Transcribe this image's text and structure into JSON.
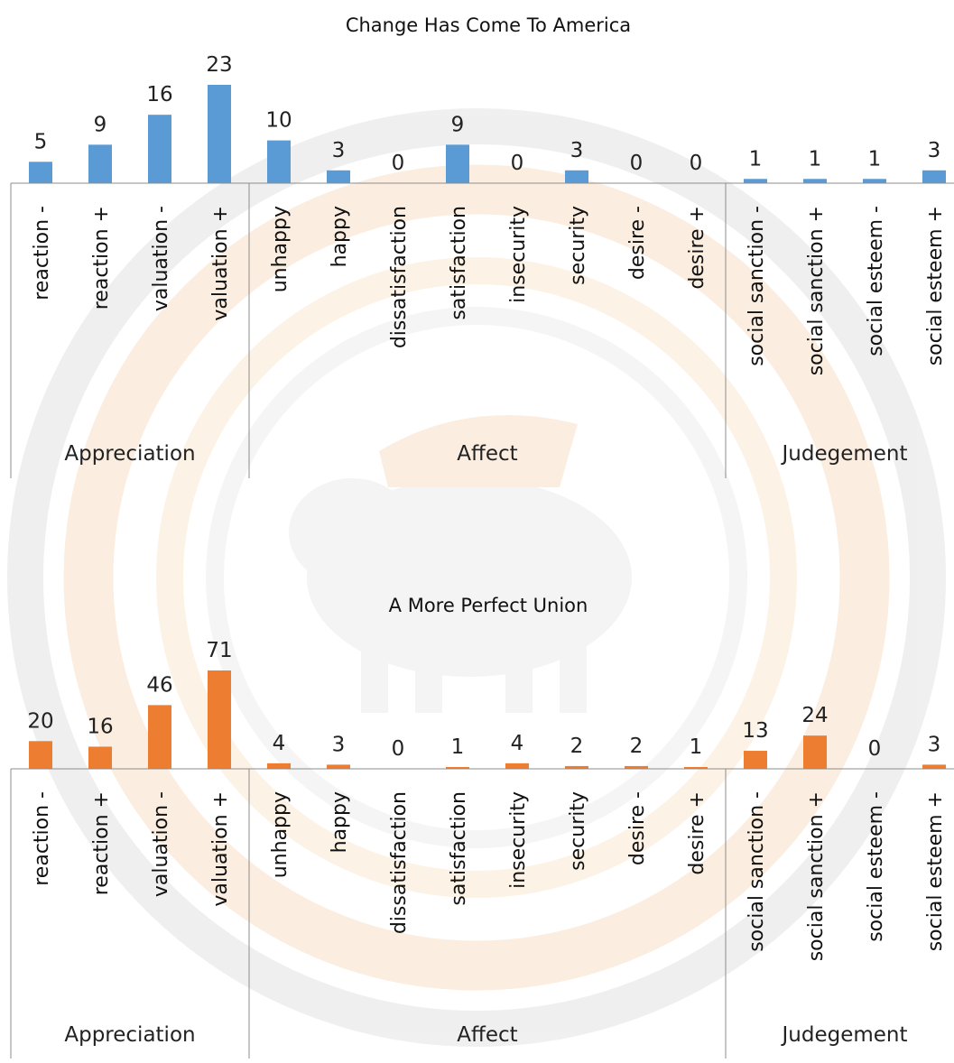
{
  "colors": {
    "chart1_bar": "#5b9bd5",
    "chart2_bar": "#ed7d31",
    "axis": "#8c8c8c",
    "watermark": "#f2c391"
  },
  "watermark": {
    "icon": "university-seal-elephant-watermark"
  },
  "chart_data": [
    {
      "type": "bar",
      "title": "Change Has Come To America",
      "categories": [
        "reaction -",
        "reaction +",
        "valuation -",
        "valuation +",
        "unhappy",
        "happy",
        "dissatisfaction",
        "satisfaction",
        "insecurity",
        "security",
        "desire -",
        "desire +",
        "social sanction -",
        "social sanction +",
        "social esteem -",
        "social esteem +"
      ],
      "groups": [
        {
          "label": "Appreciation",
          "start": 0,
          "end": 3
        },
        {
          "label": "Affect",
          "start": 4,
          "end": 11
        },
        {
          "label": "Judegement",
          "start": 12,
          "end": 15
        }
      ],
      "values": [
        5,
        9,
        16,
        23,
        10,
        3,
        0,
        9,
        0,
        3,
        0,
        0,
        1,
        1,
        1,
        3
      ],
      "xlabel": "",
      "ylabel": "",
      "ylim": [
        0,
        23
      ],
      "grid": false
    },
    {
      "type": "bar",
      "title": "A More Perfect Union",
      "categories": [
        "reaction -",
        "reaction +",
        "valuation -",
        "valuation +",
        "unhappy",
        "happy",
        "dissatisfaction",
        "satisfaction",
        "insecurity",
        "security",
        "desire -",
        "desire +",
        "social sanction -",
        "social sanction +",
        "social esteem -",
        "social esteem +"
      ],
      "groups": [
        {
          "label": "Appreciation",
          "start": 0,
          "end": 3
        },
        {
          "label": "Affect",
          "start": 4,
          "end": 11
        },
        {
          "label": "Judegement",
          "start": 12,
          "end": 15
        }
      ],
      "values": [
        20,
        16,
        46,
        71,
        4,
        3,
        0,
        1,
        4,
        2,
        2,
        1,
        13,
        24,
        0,
        3
      ],
      "xlabel": "",
      "ylabel": "",
      "ylim": [
        0,
        71
      ],
      "grid": false
    }
  ]
}
